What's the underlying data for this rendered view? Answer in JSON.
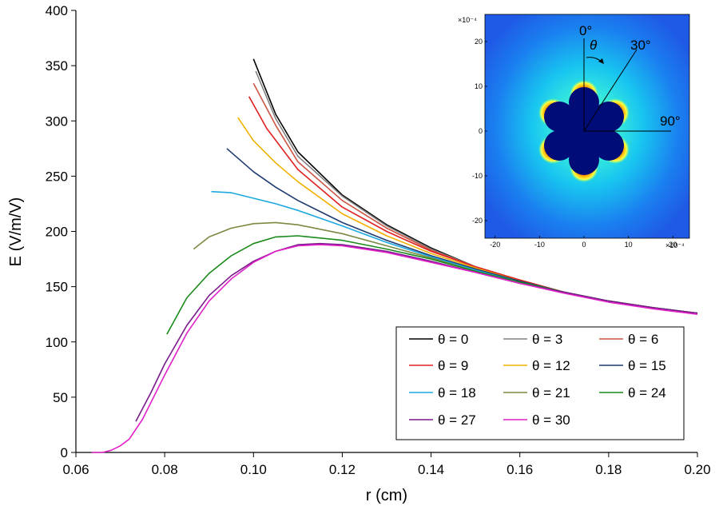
{
  "chart_data": {
    "type": "line",
    "title": "",
    "xlabel": "r (cm)",
    "ylabel": "E (V/m/V)",
    "xlim": [
      0.06,
      0.2
    ],
    "ylim": [
      0,
      400
    ],
    "xticks": [
      "0.06",
      "0.08",
      "0.10",
      "0.12",
      "0.14",
      "0.16",
      "0.18",
      "0.20"
    ],
    "yticks": [
      "0",
      "50",
      "100",
      "150",
      "200",
      "250",
      "300",
      "350",
      "400"
    ],
    "grid": false,
    "legend": "bottom-right",
    "series": [
      {
        "name": "θ = 0",
        "color": "#000000",
        "x": [
          0.1,
          0.105,
          0.11,
          0.12,
          0.13,
          0.14,
          0.15,
          0.16,
          0.17,
          0.18,
          0.19,
          0.2
        ],
        "y": [
          356,
          306,
          272,
          233,
          206,
          185,
          168,
          155,
          145,
          137,
          131,
          126
        ]
      },
      {
        "name": "θ = 3",
        "color": "#808080",
        "x": [
          0.1005,
          0.105,
          0.11,
          0.12,
          0.13,
          0.14,
          0.15,
          0.16,
          0.17,
          0.18,
          0.19,
          0.2
        ],
        "y": [
          345,
          302,
          268,
          232,
          205,
          184,
          168,
          155,
          145,
          137,
          131,
          126
        ]
      },
      {
        "name": "θ = 6",
        "color": "#cc5544",
        "x": [
          0.1,
          0.105,
          0.11,
          0.12,
          0.13,
          0.14,
          0.15,
          0.16,
          0.17,
          0.18,
          0.19,
          0.2
        ],
        "y": [
          334,
          296,
          263,
          228,
          203,
          183,
          168,
          156,
          145,
          137,
          131,
          126
        ]
      },
      {
        "name": "θ = 9",
        "color": "#e02020",
        "x": [
          0.099,
          0.103,
          0.11,
          0.12,
          0.13,
          0.14,
          0.15,
          0.16,
          0.17,
          0.18,
          0.19,
          0.2
        ],
        "y": [
          322,
          293,
          256,
          222,
          200,
          182,
          168,
          156,
          145,
          137,
          131,
          126
        ]
      },
      {
        "name": "θ = 12",
        "color": "#f0b000",
        "x": [
          0.0965,
          0.1,
          0.105,
          0.11,
          0.12,
          0.13,
          0.14,
          0.15,
          0.16,
          0.17,
          0.18,
          0.19,
          0.2
        ],
        "y": [
          303,
          282,
          262,
          245,
          216,
          196,
          180,
          167,
          155,
          145,
          137,
          131,
          126
        ]
      },
      {
        "name": "θ = 15",
        "color": "#1f3c70",
        "x": [
          0.094,
          0.1,
          0.105,
          0.11,
          0.12,
          0.13,
          0.14,
          0.15,
          0.16,
          0.17,
          0.18,
          0.19,
          0.2
        ],
        "y": [
          275,
          254,
          240,
          228,
          208,
          192,
          178,
          166,
          155,
          145,
          137,
          131,
          126
        ]
      },
      {
        "name": "θ = 18",
        "color": "#1ea8e0",
        "x": [
          0.0905,
          0.095,
          0.1,
          0.105,
          0.11,
          0.12,
          0.13,
          0.14,
          0.15,
          0.16,
          0.17,
          0.18,
          0.19,
          0.2
        ],
        "y": [
          236,
          235,
          230,
          225,
          219,
          205,
          190,
          177,
          165,
          154,
          145,
          137,
          131,
          126
        ]
      },
      {
        "name": "θ = 21",
        "color": "#7a8a40",
        "x": [
          0.0865,
          0.09,
          0.095,
          0.1,
          0.105,
          0.11,
          0.12,
          0.13,
          0.14,
          0.15,
          0.16,
          0.17,
          0.18,
          0.19,
          0.2
        ],
        "y": [
          184,
          195,
          203,
          207,
          208,
          206,
          198,
          187,
          176,
          164,
          154,
          145,
          137,
          131,
          126
        ]
      },
      {
        "name": "θ = 24",
        "color": "#1a8a1a",
        "x": [
          0.0805,
          0.085,
          0.09,
          0.095,
          0.1,
          0.105,
          0.11,
          0.12,
          0.13,
          0.14,
          0.15,
          0.16,
          0.17,
          0.18,
          0.19,
          0.2
        ],
        "y": [
          107,
          140,
          162,
          178,
          189,
          195,
          196,
          192,
          184,
          175,
          164,
          154,
          145,
          137,
          131,
          126
        ]
      },
      {
        "name": "θ = 27",
        "color": "#7a1a8a",
        "x": [
          0.0735,
          0.077,
          0.08,
          0.085,
          0.09,
          0.095,
          0.1,
          0.105,
          0.11,
          0.115,
          0.12,
          0.13,
          0.14,
          0.15,
          0.16,
          0.17,
          0.18,
          0.19,
          0.2
        ],
        "y": [
          28,
          55,
          80,
          115,
          142,
          160,
          173,
          182,
          188,
          189,
          188,
          182,
          173,
          163,
          153,
          145,
          137,
          131,
          126
        ]
      },
      {
        "name": "θ = 30",
        "color": "#e020c8",
        "x": [
          0.0635,
          0.066,
          0.068,
          0.07,
          0.072,
          0.075,
          0.08,
          0.085,
          0.09,
          0.095,
          0.1,
          0.105,
          0.11,
          0.115,
          0.12,
          0.13,
          0.14,
          0.15,
          0.16,
          0.17,
          0.18,
          0.19,
          0.2
        ],
        "y": [
          0,
          0,
          2,
          6,
          12,
          30,
          70,
          108,
          137,
          157,
          172,
          182,
          187,
          188,
          187,
          181,
          172,
          163,
          153,
          144,
          136,
          130,
          125
        ]
      }
    ],
    "inset": {
      "xticks": [
        "-20",
        "-10",
        "0",
        "10",
        "20"
      ],
      "yticks": [
        "-20",
        "-10",
        "0",
        "10",
        "20"
      ],
      "x_scale_label": "×10⁻⁴",
      "y_scale_label": "×10⁻⁴",
      "annotations": [
        "0°",
        "θ",
        "30°",
        "90°"
      ],
      "xlim": [
        -23,
        23
      ],
      "ylim": [
        -25,
        25
      ]
    }
  }
}
